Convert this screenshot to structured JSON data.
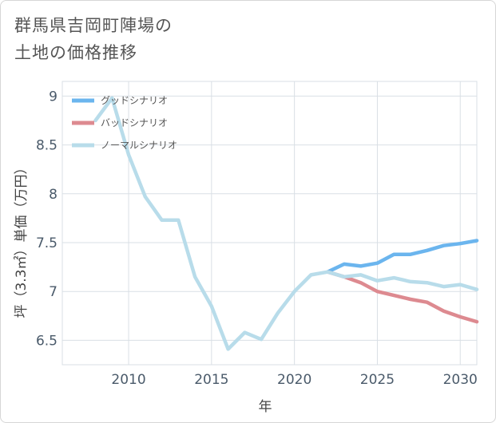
{
  "title_lines": [
    "群馬県吉岡町陣場の",
    "土地の価格推移"
  ],
  "chart_data": {
    "type": "line",
    "xlabel": "年",
    "ylabel": "坪（3.3㎡）単価（万円）",
    "xlim": [
      2006,
      2031
    ],
    "ylim": [
      6.25,
      9.15
    ],
    "xticks": [
      2010,
      2015,
      2020,
      2025,
      2030
    ],
    "yticks": [
      6.5,
      7,
      7.5,
      8,
      8.5,
      9
    ],
    "ytick_labels": [
      "6.5",
      "7",
      "7.5",
      "8",
      "8.5",
      "9"
    ],
    "grid": true,
    "legend_position": "top-left",
    "series": [
      {
        "name": "グッドシナリオ",
        "color": "#6bb5ee",
        "x": [
          2022,
          2023,
          2024,
          2025,
          2026,
          2027,
          2028,
          2029,
          2030,
          2031
        ],
        "y": [
          7.2,
          7.28,
          7.26,
          7.29,
          7.38,
          7.38,
          7.42,
          7.47,
          7.49,
          7.52
        ]
      },
      {
        "name": "バッドシナリオ",
        "color": "#dd8a90",
        "x": [
          2022,
          2023,
          2024,
          2025,
          2026,
          2027,
          2028,
          2029,
          2030,
          2031
        ],
        "y": [
          7.2,
          7.15,
          7.09,
          7.0,
          6.96,
          6.92,
          6.89,
          6.8,
          6.74,
          6.69
        ]
      },
      {
        "name": "ノーマルシナリオ",
        "color": "#b8dcea",
        "x": [
          2008,
          2009,
          2010,
          2011,
          2012,
          2013,
          2014,
          2015,
          2016,
          2017,
          2018,
          2019,
          2020,
          2021,
          2022,
          2023,
          2024,
          2025,
          2026,
          2027,
          2028,
          2029,
          2030,
          2031
        ],
        "y": [
          8.75,
          8.98,
          8.4,
          7.97,
          7.73,
          7.73,
          7.15,
          6.85,
          6.41,
          6.58,
          6.51,
          6.78,
          7.0,
          7.17,
          7.2,
          7.15,
          7.17,
          7.11,
          7.14,
          7.1,
          7.09,
          7.05,
          7.07,
          7.02
        ]
      }
    ]
  }
}
